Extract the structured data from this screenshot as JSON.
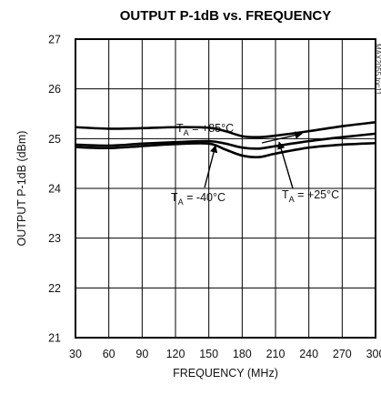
{
  "chart_data": {
    "type": "line",
    "title": "OUTPUT P-1dB vs. FREQUENCY",
    "xlabel": "FREQUENCY (MHz)",
    "ylabel": "OUTPUT P-1dB (dBm)",
    "xlim": [
      30,
      300
    ],
    "ylim": [
      21,
      27
    ],
    "x_ticks": [
      30,
      60,
      90,
      120,
      150,
      180,
      210,
      240,
      270,
      300
    ],
    "y_ticks": [
      21,
      22,
      23,
      24,
      25,
      26,
      27
    ],
    "grid": true,
    "doc_id": "MAX2055 toc11",
    "x": [
      30,
      60,
      90,
      120,
      150,
      165,
      180,
      195,
      210,
      240,
      270,
      300
    ],
    "series": [
      {
        "name": "TA = +85°C",
        "label_main": "T",
        "label_sub": "A",
        "label_rest": " = +85°C",
        "values": [
          25.23,
          25.2,
          25.21,
          25.23,
          25.22,
          25.15,
          25.05,
          25.03,
          25.06,
          25.15,
          25.25,
          25.33
        ]
      },
      {
        "name": "TA = +25°C",
        "label_main": "T",
        "label_sub": "A",
        "label_rest": " = +25°C",
        "values": [
          24.88,
          24.86,
          24.9,
          24.93,
          24.95,
          24.9,
          24.82,
          24.8,
          24.85,
          24.95,
          25.03,
          25.1
        ]
      },
      {
        "name": "TA = -40°C",
        "label_main": "T",
        "label_sub": "A",
        "label_rest": " = -40°C",
        "values": [
          24.83,
          24.81,
          24.85,
          24.89,
          24.9,
          24.78,
          24.66,
          24.63,
          24.7,
          24.82,
          24.88,
          24.91
        ]
      }
    ]
  }
}
